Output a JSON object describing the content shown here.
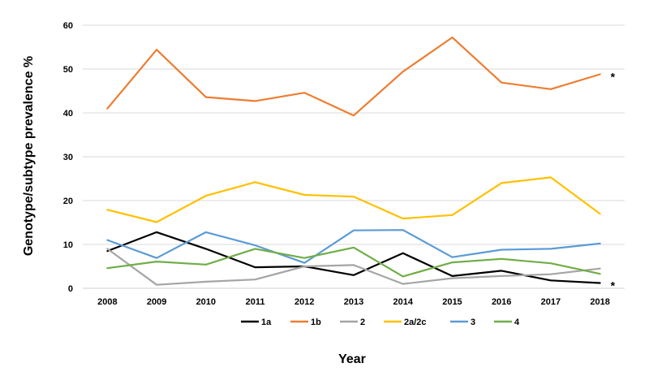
{
  "chart_data": {
    "type": "line",
    "title": "",
    "xlabel": "Year",
    "ylabel": "Genotype/subtype prevalence %",
    "categories": [
      "2008",
      "2009",
      "2010",
      "2011",
      "2012",
      "2013",
      "2014",
      "2015",
      "2016",
      "2017",
      "2018"
    ],
    "yticks": [
      "0",
      "10",
      "20",
      "30",
      "40",
      "50",
      "60"
    ],
    "ylim": [
      0,
      60
    ],
    "grid": true,
    "legend_position": "bottom",
    "series": [
      {
        "name": "1a",
        "color": "#000000",
        "values": [
          8.5,
          12.8,
          9,
          4.8,
          5,
          3,
          8,
          2.8,
          4,
          1.8,
          1.2
        ]
      },
      {
        "name": "1b",
        "color": "#ED7D31",
        "values": [
          41,
          54.4,
          43.6,
          42.7,
          44.6,
          39.4,
          49.4,
          57.2,
          46.9,
          45.4,
          48.8
        ]
      },
      {
        "name": "2",
        "color": "#A5A5A5",
        "values": [
          9,
          0.8,
          1.5,
          2,
          5,
          5.3,
          1,
          2.3,
          2.8,
          3.2,
          4.5
        ]
      },
      {
        "name": "2a/2c",
        "color": "#FFC000",
        "values": [
          17.9,
          15.1,
          21.1,
          24.2,
          21.3,
          20.9,
          15.9,
          16.7,
          24,
          25.3,
          17
        ]
      },
      {
        "name": "3",
        "color": "#5B9BD5",
        "values": [
          11,
          6.9,
          12.8,
          9.8,
          5.8,
          13.2,
          13.3,
          7.1,
          8.8,
          9,
          10.2
        ]
      },
      {
        "name": "4",
        "color": "#70AD47",
        "values": [
          4.6,
          6.1,
          5.4,
          9,
          6.9,
          9.3,
          2.7,
          5.9,
          6.7,
          5.7,
          3.3
        ]
      }
    ],
    "annotations": [
      {
        "text": "*",
        "series": "1b",
        "x": "2018",
        "y": 48.8
      },
      {
        "text": "*",
        "series": "1a",
        "x": "2018",
        "y": 1.2
      }
    ]
  }
}
